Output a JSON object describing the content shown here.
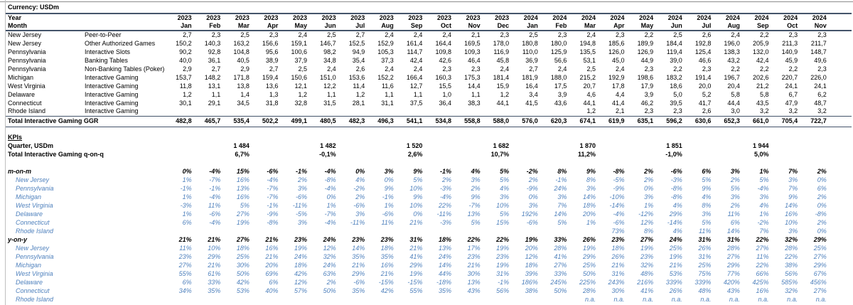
{
  "title": "Currency: USDm",
  "colors": {
    "accent_blue": "#4f81bd",
    "border_dark": "#44546a"
  },
  "header": {
    "year_label": "Year",
    "month_label": "Month",
    "years": [
      "2023",
      "2023",
      "2023",
      "2023",
      "2023",
      "2023",
      "2023",
      "2023",
      "2023",
      "2023",
      "2023",
      "2023",
      "2024",
      "2024",
      "2024",
      "2024",
      "2024",
      "2024",
      "2024",
      "2024",
      "2024",
      "2024",
      "2024"
    ],
    "months": [
      "Jan",
      "Feb",
      "Mar",
      "Apr",
      "May",
      "Jun",
      "Jul",
      "Aug",
      "Sep",
      "Oct",
      "Nov",
      "Dec",
      "Jan",
      "Feb",
      "Mar",
      "Apr",
      "May",
      "Jun",
      "Jul",
      "Aug",
      "Sep",
      "Oct",
      "Nov"
    ]
  },
  "ggr": {
    "rows": [
      {
        "state": "New Jersey",
        "segment": "Peer-to-Peer",
        "values": [
          "2,7",
          "2,3",
          "2,5",
          "2,3",
          "2,4",
          "2,5",
          "2,7",
          "2,4",
          "2,4",
          "2,4",
          "2,1",
          "2,3",
          "2,5",
          "2,3",
          "2,4",
          "2,3",
          "2,2",
          "2,5",
          "2,6",
          "2,4",
          "2,2",
          "2,3",
          "2,3"
        ]
      },
      {
        "state": "New Jersey",
        "segment": "Other Authorized Games",
        "values": [
          "150,2",
          "140,3",
          "163,2",
          "156,6",
          "159,1",
          "146,7",
          "152,5",
          "152,9",
          "161,4",
          "164,4",
          "169,5",
          "178,0",
          "180,8",
          "180,0",
          "194,8",
          "185,6",
          "189,9",
          "184,4",
          "192,8",
          "196,0",
          "205,9",
          "211,3",
          "211,7"
        ]
      },
      {
        "state": "Pennsylvania",
        "segment": "Interactive Slots",
        "values": [
          "90,2",
          "92,8",
          "104,8",
          "95,6",
          "100,6",
          "98,2",
          "94,9",
          "105,3",
          "114,7",
          "109,8",
          "109,3",
          "116,9",
          "110,0",
          "125,9",
          "135,5",
          "126,0",
          "126,9",
          "119,4",
          "125,4",
          "138,3",
          "132,0",
          "140,9",
          "148,7"
        ]
      },
      {
        "state": "Pennsylvania",
        "segment": "Banking Tables",
        "values": [
          "40,0",
          "36,1",
          "40,5",
          "38,9",
          "37,9",
          "34,8",
          "35,4",
          "37,3",
          "42,4",
          "42,6",
          "46,4",
          "45,8",
          "36,9",
          "56,6",
          "53,1",
          "45,0",
          "44,9",
          "39,0",
          "46,6",
          "43,2",
          "42,4",
          "45,9",
          "49,6"
        ]
      },
      {
        "state": "Pennsylvania",
        "segment": "Non-Banking Tables (Poker)",
        "values": [
          "2,9",
          "2,7",
          "2,9",
          "2,7",
          "2,5",
          "2,4",
          "2,6",
          "2,4",
          "2,4",
          "2,3",
          "2,3",
          "2,4",
          "2,7",
          "2,4",
          "2,5",
          "2,4",
          "2,3",
          "2,2",
          "2,3",
          "2,2",
          "2,2",
          "2,2",
          "2,3"
        ]
      },
      {
        "state": "Michigan",
        "segment": "Interactive Gaming",
        "values": [
          "153,7",
          "148,2",
          "171,8",
          "159,4",
          "150,6",
          "151,0",
          "153,6",
          "152,2",
          "166,4",
          "160,3",
          "175,3",
          "181,4",
          "181,9",
          "188,0",
          "215,2",
          "192,9",
          "198,6",
          "183,2",
          "191,4",
          "196,7",
          "202,6",
          "220,7",
          "226,0"
        ]
      },
      {
        "state": "West Virginia",
        "segment": "Interactive Gaming",
        "values": [
          "11,8",
          "13,1",
          "13,8",
          "13,6",
          "12,1",
          "12,2",
          "11,4",
          "11,6",
          "12,7",
          "15,5",
          "14,4",
          "15,9",
          "16,4",
          "17,5",
          "20,7",
          "17,8",
          "17,9",
          "18,6",
          "20,0",
          "20,4",
          "21,2",
          "24,1",
          "24,1"
        ]
      },
      {
        "state": "Delaware",
        "segment": "Interactive Gaming",
        "values": [
          "1,2",
          "1,1",
          "1,4",
          "1,3",
          "1,2",
          "1,1",
          "1,2",
          "1,1",
          "1,1",
          "1,0",
          "1,1",
          "1,2",
          "3,4",
          "3,9",
          "4,6",
          "4,4",
          "3,9",
          "5,0",
          "5,2",
          "5,8",
          "5,8",
          "6,7",
          "6,2"
        ]
      },
      {
        "state": "Connecticut",
        "segment": "Interactive Gaming",
        "values": [
          "30,1",
          "29,1",
          "34,5",
          "31,8",
          "32,8",
          "31,5",
          "28,1",
          "31,1",
          "37,5",
          "36,4",
          "38,3",
          "44,1",
          "41,5",
          "43,6",
          "44,1",
          "41,4",
          "46,2",
          "39,5",
          "41,7",
          "44,4",
          "43,5",
          "47,9",
          "48,7"
        ]
      },
      {
        "state": "Rhode Island",
        "segment": "Interactive Gaming",
        "values": [
          "",
          "",
          "",
          "",
          "",
          "",
          "",
          "",
          "",
          "",
          "",
          "",
          "",
          "",
          "1,2",
          "2,1",
          "2,3",
          "2,3",
          "2,6",
          "3,0",
          "3,2",
          "3,2",
          "3,2"
        ]
      }
    ],
    "total_label": "Total Interactive Gaming GGR",
    "total_values": [
      "482,8",
      "465,7",
      "535,4",
      "502,2",
      "499,1",
      "480,5",
      "482,3",
      "496,3",
      "541,1",
      "534,8",
      "558,8",
      "588,0",
      "576,0",
      "620,3",
      "674,1",
      "619,9",
      "635,1",
      "596,2",
      "630,6",
      "652,3",
      "661,0",
      "705,4",
      "722,7"
    ]
  },
  "kpis": {
    "title": "KPIs",
    "quarter_label": "Quarter, USDm",
    "quarter_values": [
      "",
      "",
      "1 484",
      "",
      "",
      "1 482",
      "",
      "",
      "1 520",
      "",
      "",
      "1 682",
      "",
      "",
      "1 870",
      "",
      "",
      "1 851",
      "",
      "",
      "1 944",
      "",
      ""
    ],
    "qoq_label": "Total Interactive Gaming q-on-q",
    "qoq_values": [
      "",
      "",
      "6,7%",
      "",
      "",
      "-0,1%",
      "",
      "",
      "2,6%",
      "",
      "",
      "10,7%",
      "",
      "",
      "11,2%",
      "",
      "",
      "-1,0%",
      "",
      "",
      "5,0%",
      "",
      ""
    ],
    "mom": {
      "label": "m-on-m",
      "totals": [
        "0%",
        "-4%",
        "15%",
        "-6%",
        "-1%",
        "-4%",
        "0%",
        "3%",
        "9%",
        "-1%",
        "4%",
        "5%",
        "-2%",
        "8%",
        "9%",
        "-8%",
        "2%",
        "-6%",
        "6%",
        "3%",
        "1%",
        "7%",
        "2%"
      ],
      "states": [
        {
          "name": "New Jersey",
          "values": [
            "1%",
            "-7%",
            "16%",
            "-4%",
            "2%",
            "-8%",
            "4%",
            "0%",
            "5%",
            "2%",
            "3%",
            "5%",
            "2%",
            "-1%",
            "8%",
            "-5%",
            "2%",
            "-3%",
            "5%",
            "2%",
            "5%",
            "3%",
            "0%"
          ]
        },
        {
          "name": "Pennsylvania",
          "values": [
            "-1%",
            "-1%",
            "13%",
            "-7%",
            "3%",
            "-4%",
            "-2%",
            "9%",
            "10%",
            "-3%",
            "2%",
            "4%",
            "-9%",
            "24%",
            "3%",
            "-9%",
            "0%",
            "-8%",
            "9%",
            "5%",
            "-4%",
            "7%",
            "6%"
          ]
        },
        {
          "name": "Michigan",
          "values": [
            "1%",
            "-4%",
            "16%",
            "-7%",
            "-6%",
            "0%",
            "2%",
            "-1%",
            "9%",
            "-4%",
            "9%",
            "3%",
            "0%",
            "3%",
            "14%",
            "-10%",
            "3%",
            "-8%",
            "4%",
            "3%",
            "3%",
            "9%",
            "2%"
          ]
        },
        {
          "name": "West Virginia",
          "values": [
            "-3%",
            "11%",
            "5%",
            "-1%",
            "-11%",
            "1%",
            "-6%",
            "1%",
            "10%",
            "22%",
            "-7%",
            "10%",
            "3%",
            "7%",
            "18%",
            "-14%",
            "1%",
            "4%",
            "8%",
            "2%",
            "4%",
            "14%",
            "0%"
          ]
        },
        {
          "name": "Delaware",
          "values": [
            "1%",
            "-6%",
            "27%",
            "-9%",
            "-5%",
            "-7%",
            "3%",
            "-6%",
            "0%",
            "-11%",
            "13%",
            "5%",
            "192%",
            "14%",
            "20%",
            "-4%",
            "-12%",
            "29%",
            "3%",
            "11%",
            "1%",
            "16%",
            "-8%"
          ]
        },
        {
          "name": "Connecticut",
          "values": [
            "6%",
            "-4%",
            "19%",
            "-8%",
            "3%",
            "-4%",
            "-11%",
            "11%",
            "21%",
            "-3%",
            "5%",
            "15%",
            "-6%",
            "5%",
            "1%",
            "-6%",
            "12%",
            "-14%",
            "5%",
            "6%",
            "-2%",
            "10%",
            "2%"
          ]
        },
        {
          "name": "Rhode Island",
          "values": [
            "",
            "",
            "",
            "",
            "",
            "",
            "",
            "",
            "",
            "",
            "",
            "",
            "",
            "",
            "",
            "73%",
            "8%",
            "4%",
            "11%",
            "14%",
            "7%",
            "3%",
            "0%"
          ]
        }
      ]
    },
    "yoy": {
      "label": "y-on-y",
      "totals": [
        "21%",
        "21%",
        "27%",
        "21%",
        "23%",
        "24%",
        "23%",
        "23%",
        "31%",
        "18%",
        "22%",
        "22%",
        "19%",
        "33%",
        "26%",
        "23%",
        "27%",
        "24%",
        "31%",
        "31%",
        "22%",
        "32%",
        "29%"
      ],
      "states": [
        {
          "name": "New Jersey",
          "values": [
            "11%",
            "10%",
            "18%",
            "16%",
            "19%",
            "12%",
            "14%",
            "18%",
            "21%",
            "13%",
            "17%",
            "19%",
            "20%",
            "28%",
            "19%",
            "18%",
            "19%",
            "25%",
            "26%",
            "28%",
            "27%",
            "28%",
            "25%"
          ]
        },
        {
          "name": "Pennsylvania",
          "values": [
            "23%",
            "29%",
            "25%",
            "21%",
            "24%",
            "32%",
            "35%",
            "35%",
            "41%",
            "24%",
            "23%",
            "23%",
            "12%",
            "41%",
            "29%",
            "26%",
            "23%",
            "19%",
            "31%",
            "27%",
            "11%",
            "22%",
            "27%"
          ]
        },
        {
          "name": "Michigan",
          "values": [
            "27%",
            "21%",
            "30%",
            "20%",
            "18%",
            "24%",
            "21%",
            "16%",
            "29%",
            "14%",
            "21%",
            "19%",
            "18%",
            "27%",
            "25%",
            "21%",
            "32%",
            "21%",
            "25%",
            "29%",
            "22%",
            "38%",
            "29%"
          ]
        },
        {
          "name": "West Virginia",
          "values": [
            "55%",
            "61%",
            "50%",
            "69%",
            "42%",
            "63%",
            "29%",
            "21%",
            "19%",
            "44%",
            "30%",
            "31%",
            "39%",
            "33%",
            "50%",
            "31%",
            "48%",
            "53%",
            "75%",
            "77%",
            "66%",
            "56%",
            "67%"
          ]
        },
        {
          "name": "Delaware",
          "values": [
            "6%",
            "33%",
            "42%",
            "6%",
            "12%",
            "2%",
            "-6%",
            "-15%",
            "-15%",
            "-18%",
            "13%",
            "-1%",
            "186%",
            "245%",
            "225%",
            "243%",
            "216%",
            "339%",
            "339%",
            "420%",
            "425%",
            "585%",
            "456%"
          ]
        },
        {
          "name": "Connecticut",
          "values": [
            "34%",
            "35%",
            "53%",
            "40%",
            "57%",
            "50%",
            "35%",
            "42%",
            "55%",
            "35%",
            "43%",
            "56%",
            "38%",
            "50%",
            "28%",
            "30%",
            "41%",
            "26%",
            "48%",
            "43%",
            "16%",
            "32%",
            "27%"
          ]
        },
        {
          "name": "Rhode Island",
          "values": [
            "",
            "",
            "",
            "",
            "",
            "",
            "",
            "",
            "",
            "",
            "",
            "",
            "",
            "",
            "n.a.",
            "n.a.",
            "n.a.",
            "n.a.",
            "n.a.",
            "n.a.",
            "n.a.",
            "n.a.",
            "n.a."
          ]
        }
      ]
    }
  }
}
